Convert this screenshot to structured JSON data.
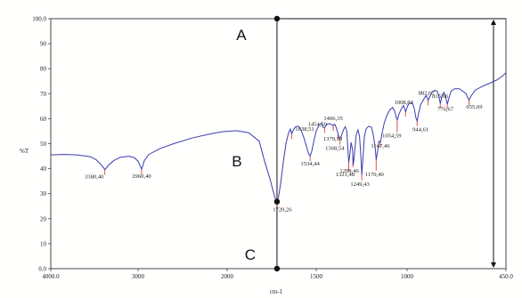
{
  "chart_data": {
    "type": "line",
    "title": "",
    "xlabel": "cm-1",
    "ylabel": "%T",
    "xlim": [
      4000,
      450
    ],
    "ylim": [
      0,
      100
    ],
    "grid": false,
    "x_ticks": [
      "4000.0",
      "3000",
      "2000",
      "1500",
      "1000",
      "450.0"
    ],
    "y_ticks": [
      "0.0",
      "10",
      "20",
      "30",
      "40",
      "50",
      "60",
      "70",
      "80",
      "90",
      "100.0"
    ],
    "colors": {
      "spectrum": "#3b3bb0",
      "peak_marker": "#dd2222",
      "frame": "#444444"
    },
    "series": [
      {
        "points": [
          [
            4000,
            45.5
          ],
          [
            3850,
            45.7
          ],
          [
            3700,
            45.5
          ],
          [
            3550,
            44.8
          ],
          [
            3480,
            43.6
          ],
          [
            3420,
            41.5
          ],
          [
            3380,
            39.6
          ],
          [
            3340,
            41.3
          ],
          [
            3280,
            43.2
          ],
          [
            3200,
            44.6
          ],
          [
            3100,
            45.0
          ],
          [
            3040,
            44.3
          ],
          [
            3000,
            43.0
          ],
          [
            2960,
            39.8
          ],
          [
            2930,
            43.2
          ],
          [
            2880,
            45.7
          ],
          [
            2750,
            48.1
          ],
          [
            2600,
            50.0
          ],
          [
            2400,
            52.2
          ],
          [
            2200,
            53.8
          ],
          [
            2050,
            54.8
          ],
          [
            1950,
            55.2
          ],
          [
            1880,
            54.4
          ],
          [
            1820,
            51.0
          ],
          [
            1790,
            43.0
          ],
          [
            1760,
            36.0
          ],
          [
            1740,
            30.5
          ],
          [
            1728,
            27.6
          ],
          [
            1720,
            26.8
          ],
          [
            1712,
            28.5
          ],
          [
            1700,
            34.0
          ],
          [
            1685,
            42.5
          ],
          [
            1670,
            50.0
          ],
          [
            1655,
            54.4
          ],
          [
            1645,
            55.8
          ],
          [
            1638,
            53.9
          ],
          [
            1628,
            55.6
          ],
          [
            1615,
            56.8
          ],
          [
            1600,
            57.0
          ],
          [
            1585,
            55.5
          ],
          [
            1570,
            52.5
          ],
          [
            1555,
            49.0
          ],
          [
            1543,
            46.0
          ],
          [
            1534,
            45.1
          ],
          [
            1525,
            47.0
          ],
          [
            1512,
            51.5
          ],
          [
            1500,
            55.0
          ],
          [
            1485,
            57.5
          ],
          [
            1472,
            58.2
          ],
          [
            1462,
            56.5
          ],
          [
            1454,
            56.4
          ],
          [
            1440,
            57.8
          ],
          [
            1425,
            58.0
          ],
          [
            1413,
            57.5
          ],
          [
            1406,
            57.3
          ],
          [
            1398,
            57.8
          ],
          [
            1390,
            56.5
          ],
          [
            1382,
            54.5
          ],
          [
            1379,
            53.5
          ],
          [
            1372,
            52.5
          ],
          [
            1368,
            52.0
          ],
          [
            1360,
            53.5
          ],
          [
            1350,
            55.6
          ],
          [
            1340,
            56.8
          ],
          [
            1332,
            55.0
          ],
          [
            1325,
            47.0
          ],
          [
            1321,
            42.5
          ],
          [
            1316,
            45.0
          ],
          [
            1308,
            50.5
          ],
          [
            1300,
            47.5
          ],
          [
            1296,
            41.5
          ],
          [
            1290,
            45.5
          ],
          [
            1280,
            53.5
          ],
          [
            1270,
            55.5
          ],
          [
            1262,
            53.0
          ],
          [
            1255,
            45.5
          ],
          [
            1249,
            37.6
          ],
          [
            1243,
            44.0
          ],
          [
            1235,
            53.0
          ],
          [
            1225,
            56.0
          ],
          [
            1210,
            57.0
          ],
          [
            1195,
            56.5
          ],
          [
            1185,
            53.0
          ],
          [
            1175,
            48.0
          ],
          [
            1170,
            43.5
          ],
          [
            1163,
            46.5
          ],
          [
            1155,
            51.0
          ],
          [
            1147,
            50.5
          ],
          [
            1138,
            54.0
          ],
          [
            1125,
            58.5
          ],
          [
            1110,
            61.5
          ],
          [
            1095,
            63.5
          ],
          [
            1080,
            64.5
          ],
          [
            1068,
            63.0
          ],
          [
            1060,
            60.5
          ],
          [
            1054,
            59.5
          ],
          [
            1046,
            61.5
          ],
          [
            1035,
            63.5
          ],
          [
            1020,
            65.3
          ],
          [
            1008,
            62.8
          ],
          [
            996,
            65.3
          ],
          [
            985,
            66.2
          ],
          [
            972,
            66.5
          ],
          [
            960,
            64.0
          ],
          [
            950,
            60.0
          ],
          [
            944,
            59.1
          ],
          [
            938,
            61.5
          ],
          [
            925,
            65.5
          ],
          [
            910,
            67.5
          ],
          [
            895,
            69.2
          ],
          [
            882,
            67.4
          ],
          [
            872,
            69.0
          ],
          [
            860,
            70.8
          ],
          [
            845,
            71.3
          ],
          [
            833,
            71.0
          ],
          [
            825,
            69.6
          ],
          [
            815,
            66.0
          ],
          [
            805,
            69.5
          ],
          [
            795,
            70.5
          ],
          [
            785,
            68.5
          ],
          [
            776,
            65.8
          ],
          [
            768,
            68.0
          ],
          [
            755,
            71.0
          ],
          [
            735,
            72.0
          ],
          [
            710,
            72.0
          ],
          [
            690,
            71.0
          ],
          [
            672,
            70.0
          ],
          [
            664,
            68.5
          ],
          [
            655,
            67.5
          ],
          [
            645,
            69.0
          ],
          [
            620,
            71.5
          ],
          [
            580,
            73.0
          ],
          [
            540,
            74.2
          ],
          [
            500,
            75.5
          ],
          [
            470,
            77.0
          ],
          [
            450,
            78.4
          ]
        ]
      }
    ],
    "peaks": [
      {
        "x": 3380.4,
        "label": "3380,40"
      },
      {
        "x": 2960.4,
        "label": "2960,40"
      },
      {
        "x": 1720.26,
        "label": "1720,26"
      },
      {
        "x": 1638.51,
        "label": "1638,51"
      },
      {
        "x": 1534.44,
        "label": "1534,44"
      },
      {
        "x": 1454.5,
        "label": "1454,50"
      },
      {
        "x": 1406.35,
        "label": "1406,35"
      },
      {
        "x": 1379.5,
        "label": "1379,50"
      },
      {
        "x": 1368.54,
        "label": "1368,54"
      },
      {
        "x": 1321.48,
        "label": "1321,48"
      },
      {
        "x": 1298.46,
        "label": "1298,46"
      },
      {
        "x": 1249.43,
        "label": "1249,43"
      },
      {
        "x": 1170.4,
        "label": "1170,40"
      },
      {
        "x": 1147.46,
        "label": "1147,46"
      },
      {
        "x": 1054.59,
        "label": "1054,59"
      },
      {
        "x": 1008.82,
        "label": "1008,82"
      },
      {
        "x": 944.61,
        "label": "944,61"
      },
      {
        "x": 882.67,
        "label": "882,67"
      },
      {
        "x": 815.66,
        "label": "815,66"
      },
      {
        "x": 776.67,
        "label": "776,67"
      },
      {
        "x": 655.69,
        "label": "655,69"
      }
    ],
    "annotations": {
      "label_a": "A",
      "label_b": "B",
      "label_c": "C",
      "vertical_line_x": 1720.26,
      "marker_top_y": 100,
      "marker_mid_y": 26.8,
      "marker_bottom_y": 0,
      "arrow_from_y": 0,
      "arrow_to_y": 100,
      "arrow_x": 450,
      "line_a_y": 100
    }
  }
}
